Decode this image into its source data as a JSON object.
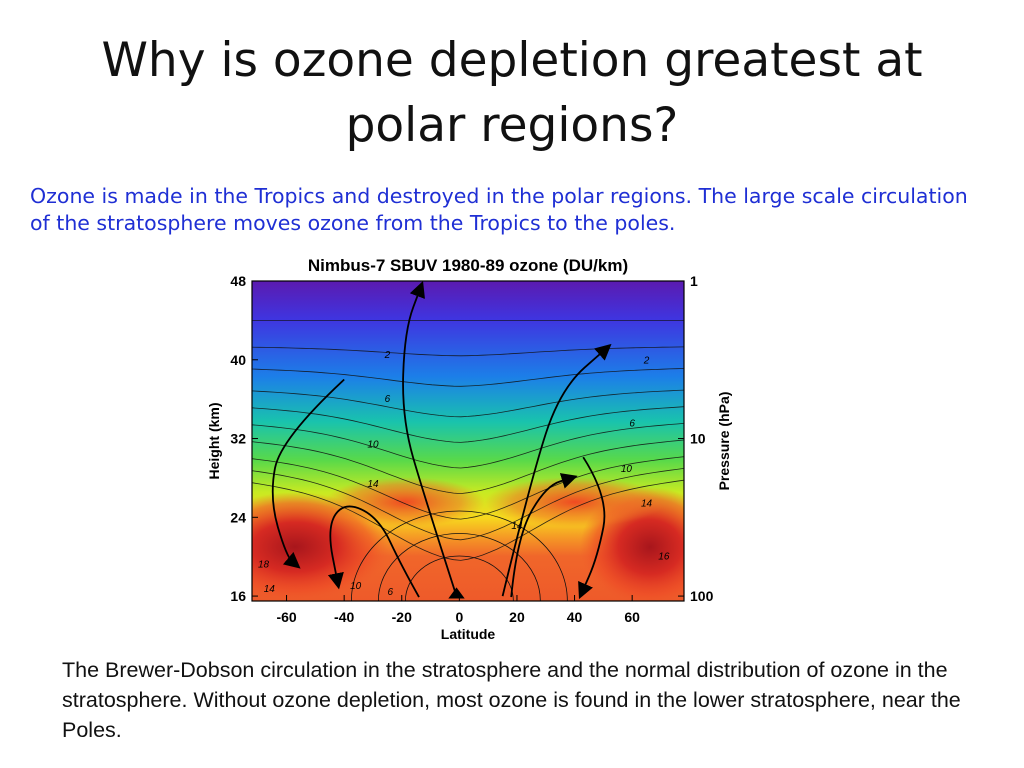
{
  "slide": {
    "title": "Why is ozone depletion greatest at polar regions?",
    "subtitle": "Ozone is made in the Tropics and destroyed in the polar regions. The large scale circulation of the stratosphere moves ozone from the Tropics to the poles.",
    "caption": "The Brewer-Dobson circulation in the stratosphere and the normal distribution of ozone in the stratosphere. Without ozone depletion, most ozone is found in the lower stratosphere, near the Poles."
  },
  "chart_data": {
    "type": "heatmap",
    "title": "Nimbus-7 SBUV 1980-89 ozone (DU/km)",
    "xlabel": "Latitude",
    "ylabel": "Height (km)",
    "y2label": "Pressure (hPa)",
    "xlim": [
      -72,
      78
    ],
    "ylim": [
      15.5,
      48
    ],
    "x_ticks": [
      -60,
      -40,
      -20,
      0,
      20,
      40,
      60
    ],
    "x_tick_labels": [
      "-60",
      "-40",
      "-20",
      "0",
      "20",
      "40",
      "60"
    ],
    "y_ticks": [
      48,
      40,
      32,
      24,
      16
    ],
    "y_tick_labels": [
      "48",
      "40",
      "32",
      "24",
      "16"
    ],
    "y2_ticks": [
      {
        "height_km": 48,
        "label": "1"
      },
      {
        "height_km": 32,
        "label": "10"
      },
      {
        "height_km": 16,
        "label": "100"
      }
    ],
    "contour_levels": [
      1,
      2,
      4,
      6,
      8,
      10,
      12,
      14,
      16,
      18
    ],
    "contour_labels": [
      {
        "text": "2",
        "x": -25,
        "y": 40.2
      },
      {
        "text": "2",
        "x": 65,
        "y": 39.6
      },
      {
        "text": "6",
        "x": -25,
        "y": 35.7
      },
      {
        "text": "6",
        "x": 60,
        "y": 33.2
      },
      {
        "text": "10",
        "x": -30,
        "y": 31.1
      },
      {
        "text": "10",
        "x": 58,
        "y": 28.6
      },
      {
        "text": "14",
        "x": -30,
        "y": 27.1
      },
      {
        "text": "14",
        "x": 20,
        "y": 22.8
      },
      {
        "text": "14",
        "x": 65,
        "y": 25.1
      },
      {
        "text": "18",
        "x": -68,
        "y": 18.9
      },
      {
        "text": "14",
        "x": -66,
        "y": 16.4
      },
      {
        "text": "10",
        "x": -36,
        "y": 16.7
      },
      {
        "text": "6",
        "x": -24,
        "y": 16.1
      },
      {
        "text": "16",
        "x": 71,
        "y": 19.7
      }
    ],
    "circulation_arrows": [
      {
        "name": "left-outer",
        "points": [
          [
            -40,
            38
          ],
          [
            -62,
            32
          ],
          [
            -66,
            26
          ],
          [
            -60,
            20
          ],
          [
            -56,
            19
          ]
        ]
      },
      {
        "name": "left-inner",
        "points": [
          [
            -14,
            15.9
          ],
          [
            -20,
            19
          ],
          [
            -28,
            24
          ],
          [
            -40,
            25.6
          ],
          [
            -46,
            23
          ],
          [
            -42,
            17
          ]
        ]
      },
      {
        "name": "center-left-up",
        "points": [
          [
            -1,
            16
          ],
          [
            -12,
            26
          ],
          [
            -20,
            34
          ],
          [
            -19,
            43
          ],
          [
            -13,
            47.7
          ]
        ]
      },
      {
        "name": "center-right-up",
        "points": [
          [
            15,
            16
          ],
          [
            25,
            28
          ],
          [
            35,
            37
          ],
          [
            52,
            41.4
          ]
        ]
      },
      {
        "name": "right-inner",
        "points": [
          [
            18,
            15.9
          ],
          [
            20,
            22
          ],
          [
            30,
            27.2
          ],
          [
            40,
            28.1
          ]
        ]
      },
      {
        "name": "right-outer",
        "points": [
          [
            43,
            30.1
          ],
          [
            52,
            26
          ],
          [
            48,
            20
          ],
          [
            42,
            16
          ]
        ]
      },
      {
        "name": "bottom-up-arrowhead",
        "points": [
          [
            -3.5,
            15.8
          ],
          [
            -1,
            16.8
          ],
          [
            1.5,
            15.8
          ]
        ]
      }
    ]
  }
}
